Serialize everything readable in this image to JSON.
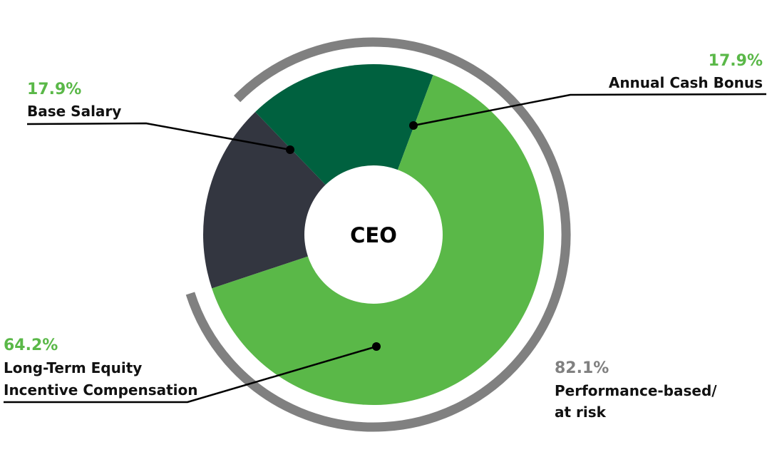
{
  "chart_data": {
    "type": "pie",
    "center_label": "CEO",
    "slices": [
      {
        "name": "Base Salary",
        "value": 17.9,
        "pct_label": "17.9%",
        "color": "#333640"
      },
      {
        "name": "Annual Cash Bonus",
        "value": 17.9,
        "pct_label": "17.9%",
        "color": "#00613f"
      },
      {
        "name": "Long-Term Equity Incentive Compensation",
        "value": 64.2,
        "pct_label": "64.2%",
        "color": "#5ab848",
        "name_lines": [
          "Long-Term Equity",
          "Incentive Compensation"
        ]
      }
    ],
    "bracket": {
      "value": 82.1,
      "pct_label": "82.1%",
      "label_lines": [
        "Performance-based/",
        "at risk"
      ],
      "color": "#808080"
    },
    "pct_label_color": "#5ab848"
  }
}
